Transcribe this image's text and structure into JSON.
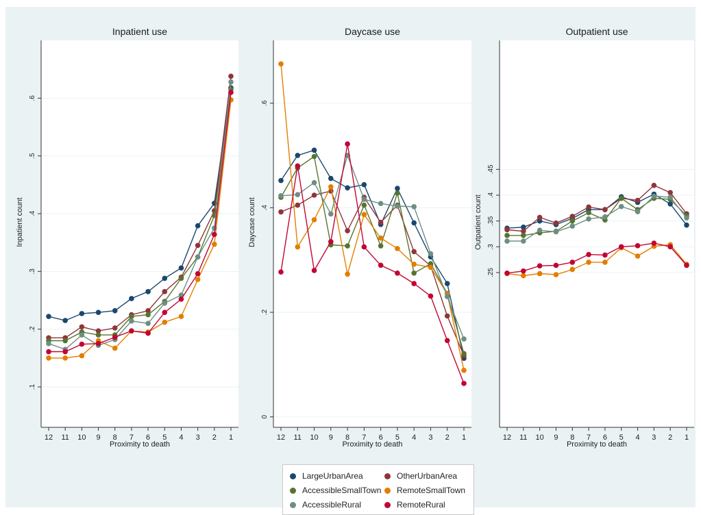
{
  "chart_data": [
    {
      "type": "line",
      "title": "Inpatient use",
      "xlabel": "Proximity to death",
      "ylabel": "Inpatient count",
      "x": [
        12,
        11,
        10,
        9,
        8,
        7,
        6,
        5,
        4,
        3,
        2,
        1
      ],
      "xtick_labels": [
        "12",
        "11",
        "10",
        "9",
        "8",
        "7",
        "6",
        "5",
        "4",
        "3",
        "2",
        "1"
      ],
      "ylim": [
        0.03,
        0.7
      ],
      "yticks": [
        0.1,
        0.2,
        0.3,
        0.4,
        0.5,
        0.6
      ],
      "ytick_labels": [
        ".1",
        ".2",
        ".3",
        ".4",
        ".5",
        ".6"
      ],
      "series": [
        {
          "name": "LargeUrbanArea",
          "values": [
            0.222,
            0.215,
            0.227,
            0.229,
            0.232,
            0.253,
            0.265,
            0.288,
            0.306,
            0.379,
            0.418,
            0.618
          ]
        },
        {
          "name": "OtherUrbanArea",
          "values": [
            0.185,
            0.185,
            0.204,
            0.197,
            0.202,
            0.225,
            0.232,
            0.265,
            0.29,
            0.345,
            0.405,
            0.638
          ]
        },
        {
          "name": "AccessibleSmallTown",
          "values": [
            0.18,
            0.18,
            0.195,
            0.19,
            0.19,
            0.222,
            0.225,
            0.248,
            0.288,
            0.325,
            0.397,
            0.615
          ]
        },
        {
          "name": "RemoteSmallTown",
          "values": [
            0.15,
            0.15,
            0.154,
            0.18,
            0.167,
            0.197,
            0.195,
            0.212,
            0.222,
            0.286,
            0.347,
            0.597
          ]
        },
        {
          "name": "AccessibleRural",
          "values": [
            0.175,
            0.165,
            0.19,
            0.172,
            0.182,
            0.214,
            0.21,
            0.245,
            0.259,
            0.325,
            0.375,
            0.628
          ]
        },
        {
          "name": "RemoteRural",
          "values": [
            0.161,
            0.161,
            0.174,
            0.175,
            0.186,
            0.197,
            0.193,
            0.229,
            0.252,
            0.296,
            0.364,
            0.61
          ]
        }
      ]
    },
    {
      "type": "line",
      "title": "Daycase use",
      "xlabel": "Proximity to death",
      "ylabel": "Daycase count",
      "x": [
        12,
        11,
        10,
        9,
        8,
        7,
        6,
        5,
        4,
        3,
        2,
        1
      ],
      "xtick_labels": [
        "12",
        "11",
        "10",
        "9",
        "8",
        "7",
        "6",
        "5",
        "4",
        "3",
        "2",
        "1"
      ],
      "ylim": [
        -0.02,
        0.72
      ],
      "yticks": [
        0,
        0.2,
        0.4,
        0.6
      ],
      "ytick_labels": [
        "0",
        ".2",
        ".4",
        ".6"
      ],
      "series": [
        {
          "name": "LargeUrbanArea",
          "values": [
            0.452,
            0.5,
            0.51,
            0.456,
            0.438,
            0.444,
            0.368,
            0.437,
            0.371,
            0.306,
            0.255,
            0.112
          ]
        },
        {
          "name": "OtherUrbanArea",
          "values": [
            0.392,
            0.405,
            0.424,
            0.432,
            0.356,
            0.42,
            0.372,
            0.405,
            0.316,
            0.289,
            0.193,
            0.117
          ]
        },
        {
          "name": "AccessibleSmallTown",
          "values": [
            0.42,
            0.476,
            0.498,
            0.329,
            0.327,
            0.405,
            0.327,
            0.428,
            0.275,
            0.293,
            0.236,
            0.121
          ]
        },
        {
          "name": "RemoteSmallTown",
          "values": [
            0.675,
            0.325,
            0.377,
            0.44,
            0.273,
            0.387,
            0.342,
            0.322,
            0.292,
            0.286,
            0.235,
            0.089
          ]
        },
        {
          "name": "AccessibleRural",
          "values": [
            0.423,
            0.425,
            0.448,
            0.388,
            0.5,
            0.416,
            0.408,
            0.403,
            0.402,
            0.312,
            0.23,
            0.149
          ]
        },
        {
          "name": "RemoteRural",
          "values": [
            0.277,
            0.48,
            0.28,
            0.335,
            0.522,
            0.325,
            0.29,
            0.275,
            0.255,
            0.231,
            0.146,
            0.064
          ]
        }
      ]
    },
    {
      "type": "line",
      "title": "Outpatient use",
      "xlabel": "Proximity to death",
      "ylabel": "Outpatient count",
      "x": [
        12,
        11,
        10,
        9,
        8,
        7,
        6,
        5,
        4,
        3,
        2,
        1
      ],
      "xtick_labels": [
        "12",
        "11",
        "10",
        "9",
        "8",
        "7",
        "6",
        "5",
        "4",
        "3",
        "2",
        "1"
      ],
      "ylim": [
        -0.05,
        0.7
      ],
      "yticks": [
        0.25,
        0.3,
        0.35,
        0.4,
        0.45
      ],
      "ytick_labels": [
        ".25",
        ".3",
        ".35",
        ".4",
        ".45"
      ],
      "series": [
        {
          "name": "LargeUrbanArea",
          "values": [
            0.336,
            0.338,
            0.35,
            0.343,
            0.355,
            0.372,
            0.372,
            0.397,
            0.386,
            0.402,
            0.383,
            0.342
          ]
        },
        {
          "name": "OtherUrbanArea",
          "values": [
            0.333,
            0.33,
            0.357,
            0.346,
            0.359,
            0.377,
            0.372,
            0.394,
            0.39,
            0.419,
            0.405,
            0.364
          ]
        },
        {
          "name": "AccessibleSmallTown",
          "values": [
            0.322,
            0.322,
            0.327,
            0.33,
            0.35,
            0.366,
            0.352,
            0.394,
            0.372,
            0.394,
            0.392,
            0.36
          ]
        },
        {
          "name": "RemoteSmallTown",
          "values": [
            0.248,
            0.244,
            0.248,
            0.246,
            0.256,
            0.27,
            0.27,
            0.298,
            0.282,
            0.301,
            0.304,
            0.266
          ]
        },
        {
          "name": "AccessibleRural",
          "values": [
            0.311,
            0.311,
            0.332,
            0.329,
            0.34,
            0.354,
            0.358,
            0.378,
            0.368,
            0.398,
            0.396,
            0.356
          ]
        },
        {
          "name": "RemoteRural",
          "values": [
            0.249,
            0.253,
            0.263,
            0.264,
            0.27,
            0.285,
            0.284,
            0.3,
            0.302,
            0.307,
            0.3,
            0.264
          ]
        }
      ]
    }
  ],
  "colors": {
    "LargeUrbanArea": "#1a476f",
    "OtherUrbanArea": "#90353b",
    "AccessibleSmallTown": "#55752f",
    "RemoteSmallTown": "#e37e00",
    "AccessibleRural": "#6e8e84",
    "RemoteRural": "#c10534",
    "plot_background": "#ffffff",
    "figure_background": "#eaf2f3",
    "grid": "#eaf2f3"
  },
  "legend": {
    "placement": "bottom-center",
    "items": [
      {
        "label": "LargeUrbanArea",
        "color": "#1a476f"
      },
      {
        "label": "OtherUrbanArea",
        "color": "#90353b"
      },
      {
        "label": "AccessibleSmallTown",
        "color": "#55752f"
      },
      {
        "label": "RemoteSmallTown",
        "color": "#e37e00"
      },
      {
        "label": "AccessibleRural",
        "color": "#6e8e84"
      },
      {
        "label": "RemoteRural",
        "color": "#c10534"
      }
    ]
  }
}
